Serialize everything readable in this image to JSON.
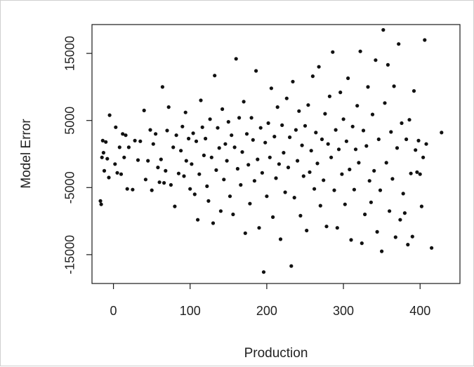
{
  "chart_data": {
    "type": "scatter",
    "title": "",
    "xlabel": "Production",
    "ylabel": "Model Error",
    "xlim": [
      -28,
      452
    ],
    "ylim": [
      -19300,
      19300
    ],
    "x_ticks": [
      0,
      100,
      200,
      300,
      400
    ],
    "x_tick_labels": [
      "0",
      "100",
      "200",
      "300",
      "400"
    ],
    "y_ticks": [
      -15000,
      -5000,
      5000,
      15000
    ],
    "y_tick_labels": [
      "-15000",
      "-5000",
      "5000",
      "15000"
    ],
    "grid": false,
    "point_color": "#111111",
    "points": [
      [
        -17,
        -7000
      ],
      [
        -16,
        -7500
      ],
      [
        -15,
        -500
      ],
      [
        -14,
        2000
      ],
      [
        -13,
        200
      ],
      [
        -12,
        -2500
      ],
      [
        -10,
        1800
      ],
      [
        -8,
        -700
      ],
      [
        -6,
        -3500
      ],
      [
        -5,
        5800
      ],
      [
        2,
        -1500
      ],
      [
        3,
        4000
      ],
      [
        5,
        -2800
      ],
      [
        8,
        1000
      ],
      [
        10,
        -3000
      ],
      [
        12,
        3000
      ],
      [
        14,
        -500
      ],
      [
        16,
        2800
      ],
      [
        18,
        -5200
      ],
      [
        20,
        1000
      ],
      [
        25,
        -5300
      ],
      [
        28,
        2000
      ],
      [
        32,
        -900
      ],
      [
        35,
        1900
      ],
      [
        40,
        6500
      ],
      [
        42,
        -3800
      ],
      [
        45,
        -1000
      ],
      [
        48,
        3600
      ],
      [
        50,
        -5400
      ],
      [
        52,
        1500
      ],
      [
        55,
        3000
      ],
      [
        58,
        -2000
      ],
      [
        60,
        -4200
      ],
      [
        62,
        -800
      ],
      [
        64,
        10000
      ],
      [
        66,
        -4300
      ],
      [
        68,
        -2500
      ],
      [
        70,
        3500
      ],
      [
        72,
        7000
      ],
      [
        75,
        -4600
      ],
      [
        78,
        1000
      ],
      [
        80,
        -7800
      ],
      [
        82,
        2800
      ],
      [
        85,
        -2900
      ],
      [
        88,
        500
      ],
      [
        90,
        4100
      ],
      [
        92,
        -3300
      ],
      [
        94,
        6200
      ],
      [
        95,
        -1000
      ],
      [
        98,
        2300
      ],
      [
        100,
        -5200
      ],
      [
        102,
        -1500
      ],
      [
        104,
        3100
      ],
      [
        106,
        -6000
      ],
      [
        108,
        1900
      ],
      [
        110,
        -9800
      ],
      [
        112,
        -3000
      ],
      [
        114,
        8000
      ],
      [
        116,
        4000
      ],
      [
        118,
        -200
      ],
      [
        120,
        2300
      ],
      [
        122,
        -4800
      ],
      [
        124,
        -7000
      ],
      [
        126,
        5200
      ],
      [
        128,
        -500
      ],
      [
        130,
        -10300
      ],
      [
        132,
        11700
      ],
      [
        134,
        -2400
      ],
      [
        136,
        3900
      ],
      [
        138,
        900
      ],
      [
        140,
        -8500
      ],
      [
        142,
        6700
      ],
      [
        144,
        -3800
      ],
      [
        146,
        1500
      ],
      [
        148,
        -1000
      ],
      [
        150,
        4800
      ],
      [
        152,
        -6300
      ],
      [
        154,
        2800
      ],
      [
        156,
        -9000
      ],
      [
        158,
        1000
      ],
      [
        160,
        14200
      ],
      [
        162,
        -2200
      ],
      [
        164,
        5400
      ],
      [
        166,
        -4600
      ],
      [
        168,
        300
      ],
      [
        170,
        7800
      ],
      [
        172,
        -11800
      ],
      [
        174,
        3000
      ],
      [
        176,
        -1600
      ],
      [
        178,
        -7400
      ],
      [
        180,
        5400
      ],
      [
        182,
        2100
      ],
      [
        184,
        -4000
      ],
      [
        186,
        12400
      ],
      [
        188,
        -800
      ],
      [
        190,
        -11000
      ],
      [
        192,
        3900
      ],
      [
        194,
        -2800
      ],
      [
        196,
        -17600
      ],
      [
        198,
        1700
      ],
      [
        200,
        -6300
      ],
      [
        202,
        4600
      ],
      [
        204,
        -500
      ],
      [
        206,
        9800
      ],
      [
        208,
        -9400
      ],
      [
        210,
        2600
      ],
      [
        212,
        -3600
      ],
      [
        214,
        7000
      ],
      [
        216,
        -1500
      ],
      [
        218,
        -12700
      ],
      [
        220,
        4300
      ],
      [
        222,
        200
      ],
      [
        224,
        -5700
      ],
      [
        226,
        8300
      ],
      [
        228,
        -2000
      ],
      [
        230,
        2500
      ],
      [
        232,
        -16700
      ],
      [
        234,
        10800
      ],
      [
        236,
        -6500
      ],
      [
        238,
        3600
      ],
      [
        240,
        -1000
      ],
      [
        242,
        6400
      ],
      [
        244,
        -9200
      ],
      [
        246,
        1300
      ],
      [
        248,
        -3300
      ],
      [
        250,
        4200
      ],
      [
        252,
        -11400
      ],
      [
        254,
        7300
      ],
      [
        256,
        -2700
      ],
      [
        258,
        500
      ],
      [
        260,
        11600
      ],
      [
        262,
        -5200
      ],
      [
        264,
        3200
      ],
      [
        266,
        -1400
      ],
      [
        268,
        13000
      ],
      [
        270,
        -7700
      ],
      [
        272,
        2200
      ],
      [
        274,
        -3900
      ],
      [
        276,
        6000
      ],
      [
        278,
        -10800
      ],
      [
        280,
        1500
      ],
      [
        282,
        8600
      ],
      [
        284,
        -500
      ],
      [
        286,
        15200
      ],
      [
        288,
        -5400
      ],
      [
        290,
        3600
      ],
      [
        292,
        -11000
      ],
      [
        294,
        700
      ],
      [
        296,
        9200
      ],
      [
        298,
        -3000
      ],
      [
        300,
        5200
      ],
      [
        302,
        -7500
      ],
      [
        304,
        1900
      ],
      [
        306,
        11300
      ],
      [
        308,
        -2300
      ],
      [
        310,
        -12800
      ],
      [
        312,
        4100
      ],
      [
        314,
        -5300
      ],
      [
        316,
        700
      ],
      [
        318,
        7200
      ],
      [
        320,
        -1300
      ],
      [
        322,
        15300
      ],
      [
        324,
        -13300
      ],
      [
        326,
        3500
      ],
      [
        328,
        -9000
      ],
      [
        330,
        1200
      ],
      [
        332,
        10000
      ],
      [
        334,
        -4000
      ],
      [
        336,
        -7200
      ],
      [
        338,
        5900
      ],
      [
        340,
        -2500
      ],
      [
        342,
        14000
      ],
      [
        344,
        -11600
      ],
      [
        346,
        2200
      ],
      [
        348,
        -5400
      ],
      [
        350,
        -14500
      ],
      [
        352,
        18500
      ],
      [
        354,
        7600
      ],
      [
        356,
        -1300
      ],
      [
        358,
        13300
      ],
      [
        360,
        -8500
      ],
      [
        362,
        3300
      ],
      [
        364,
        -3700
      ],
      [
        366,
        10100
      ],
      [
        368,
        -12400
      ],
      [
        370,
        900
      ],
      [
        372,
        16400
      ],
      [
        374,
        -9800
      ],
      [
        376,
        4600
      ],
      [
        378,
        -5900
      ],
      [
        380,
        -8800
      ],
      [
        382,
        2200
      ],
      [
        384,
        -13500
      ],
      [
        386,
        5100
      ],
      [
        388,
        -2900
      ],
      [
        390,
        -12300
      ],
      [
        392,
        9400
      ],
      [
        394,
        600
      ],
      [
        396,
        -2700
      ],
      [
        398,
        2000
      ],
      [
        400,
        -3000
      ],
      [
        402,
        -7800
      ],
      [
        404,
        -500
      ],
      [
        406,
        17000
      ],
      [
        408,
        1500
      ],
      [
        415,
        -14000
      ],
      [
        428,
        3200
      ]
    ]
  }
}
